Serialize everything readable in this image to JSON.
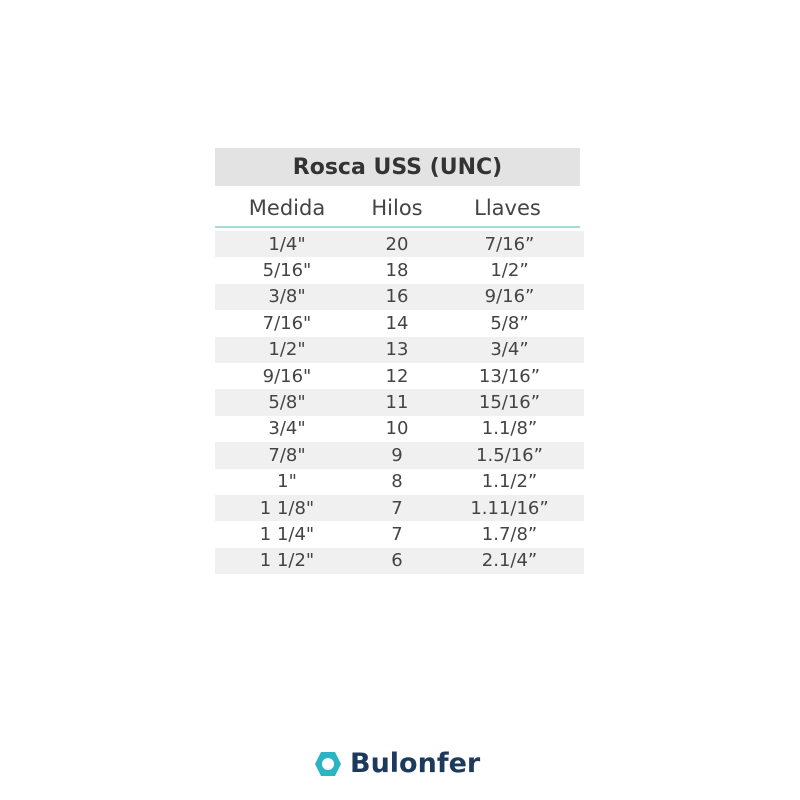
{
  "table": {
    "title": "Rosca USS (UNC)",
    "headers": [
      "Medida",
      "Hilos",
      "Llaves"
    ],
    "rows": [
      [
        "1/4\"",
        "20",
        "7/16”"
      ],
      [
        "5/16\"",
        "18",
        "1/2”"
      ],
      [
        "3/8\"",
        "16",
        "9/16”"
      ],
      [
        "7/16\"",
        "14",
        "5/8”"
      ],
      [
        "1/2\"",
        "13",
        "3/4”"
      ],
      [
        "9/16\"",
        "12",
        "13/16”"
      ],
      [
        "5/8\"",
        "11",
        "15/16”"
      ],
      [
        "3/4\"",
        "10",
        "1.1/8”"
      ],
      [
        "7/8\"",
        "9",
        "1.5/16”"
      ],
      [
        "1\"",
        "8",
        "1.1/2”"
      ],
      [
        "1 1/8\"",
        "7",
        "1.11/16”"
      ],
      [
        "1 1/4\"",
        "7",
        "1.7/8”"
      ],
      [
        "1 1/2\"",
        "6",
        "2.1/4”"
      ]
    ]
  },
  "brand": {
    "name": "Bulonfer",
    "color": "#1d3a5c",
    "accent": "#2bb5c4"
  }
}
